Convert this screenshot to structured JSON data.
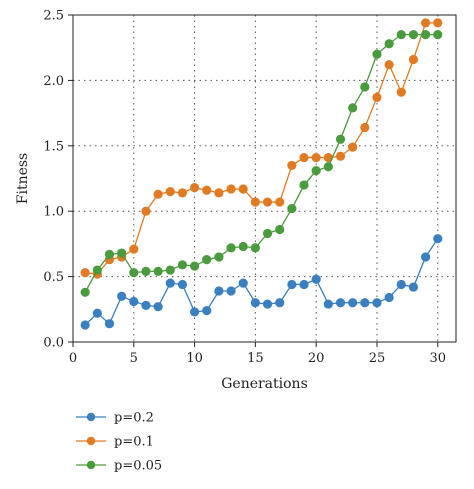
{
  "chart_data": {
    "type": "line",
    "xlabel": "Generations",
    "ylabel": "Fitness",
    "xlim": [
      0,
      31.5
    ],
    "ylim": [
      0,
      2.5
    ],
    "xticks": [
      0,
      5,
      10,
      15,
      20,
      25,
      30
    ],
    "yticks": [
      0.0,
      0.5,
      1.0,
      1.5,
      2.0,
      2.5
    ],
    "xtick_labels": [
      "0",
      "5",
      "10",
      "15",
      "20",
      "25",
      "30"
    ],
    "ytick_labels": [
      "0.0",
      "0.5",
      "1.0",
      "1.5",
      "2.0",
      "2.5"
    ],
    "grid": true,
    "legend_position": "below",
    "x": [
      1,
      2,
      3,
      4,
      5,
      6,
      7,
      8,
      9,
      10,
      11,
      12,
      13,
      14,
      15,
      16,
      17,
      18,
      19,
      20,
      21,
      22,
      23,
      24,
      25,
      26,
      27,
      28,
      29,
      30
    ],
    "series": [
      {
        "name": "p=0.2",
        "color": "#3a7fbf",
        "values": [
          0.13,
          0.22,
          0.14,
          0.35,
          0.31,
          0.28,
          0.27,
          0.45,
          0.44,
          0.23,
          0.24,
          0.39,
          0.39,
          0.45,
          0.3,
          0.29,
          0.3,
          0.44,
          0.44,
          0.48,
          0.29,
          0.3,
          0.3,
          0.3,
          0.3,
          0.34,
          0.44,
          0.42,
          0.65,
          0.79
        ]
      },
      {
        "name": "p=0.1",
        "color": "#e07b24",
        "values": [
          0.53,
          0.52,
          0.63,
          0.65,
          0.71,
          1.0,
          1.13,
          1.15,
          1.14,
          1.18,
          1.16,
          1.14,
          1.17,
          1.17,
          1.07,
          1.07,
          1.07,
          1.35,
          1.41,
          1.41,
          1.41,
          1.42,
          1.49,
          1.64,
          1.87,
          2.12,
          1.91,
          2.16,
          2.44,
          2.44
        ]
      },
      {
        "name": "p=0.05",
        "color": "#4a9a3e",
        "values": [
          0.38,
          0.55,
          0.67,
          0.68,
          0.53,
          0.54,
          0.54,
          0.55,
          0.59,
          0.58,
          0.63,
          0.65,
          0.72,
          0.73,
          0.72,
          0.83,
          0.86,
          1.02,
          1.2,
          1.31,
          1.34,
          1.55,
          1.79,
          1.95,
          2.2,
          2.28,
          2.35,
          2.35,
          2.35,
          2.35
        ]
      }
    ]
  }
}
